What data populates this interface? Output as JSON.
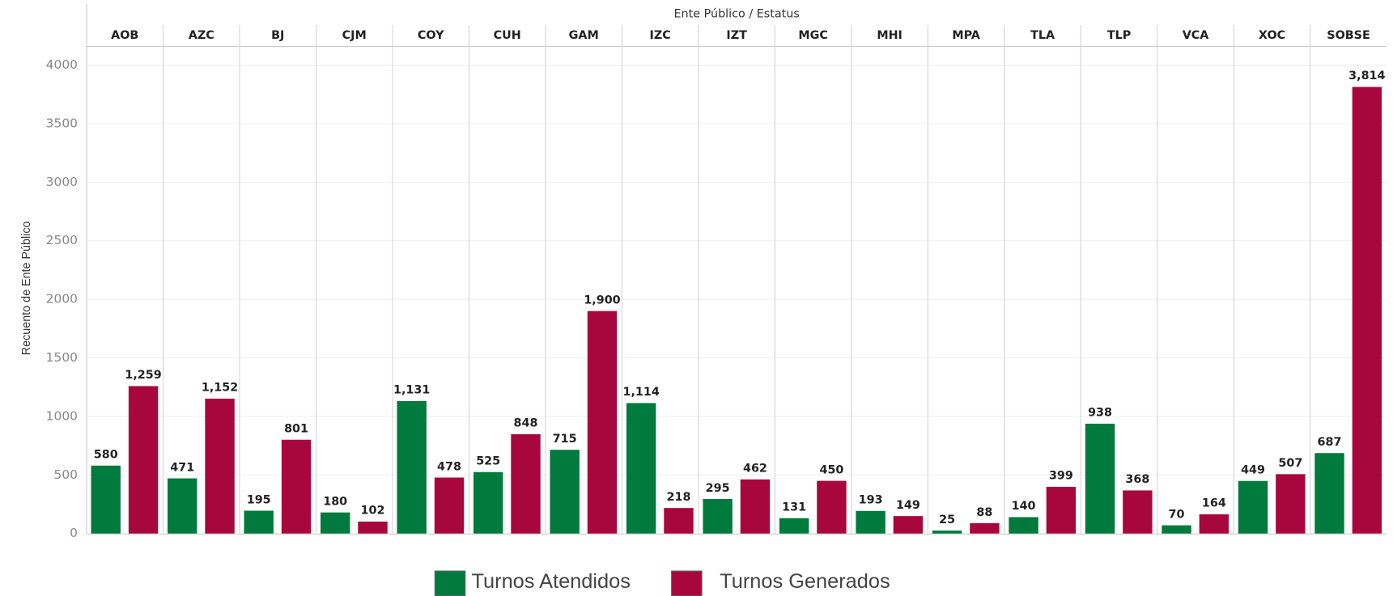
{
  "chart_data": {
    "type": "bar",
    "title": "Ente Público / Estatus",
    "y_label": "Recuento de Ente Público",
    "categories": [
      "AOB",
      "AZC",
      "BJ",
      "CJM",
      "COY",
      "CUH",
      "GAM",
      "IZC",
      "IZT",
      "MGC",
      "MHI",
      "MPA",
      "TLA",
      "TLP",
      "VCA",
      "XOC",
      "SOBSE"
    ],
    "series": [
      {
        "name": "Turnos Atendidos",
        "color": "#007a3d",
        "values": [
          580,
          471,
          195,
          180,
          1131,
          525,
          715,
          1114,
          295,
          131,
          193,
          25,
          140,
          938,
          70,
          449,
          687
        ],
        "value_labels": [
          "580",
          "471",
          "195",
          "180",
          "1,131",
          "525",
          "715",
          "1,114",
          "295",
          "131",
          "193",
          "25",
          "140",
          "938",
          "70",
          "449",
          "687"
        ]
      },
      {
        "name": "Turnos Generados",
        "color": "#a8073e",
        "values": [
          1259,
          1152,
          801,
          102,
          478,
          848,
          1900,
          218,
          462,
          450,
          149,
          88,
          399,
          368,
          164,
          507,
          3814
        ],
        "value_labels": [
          "1,259",
          "1,152",
          "801",
          "102",
          "478",
          "848",
          "1,900",
          "218",
          "462",
          "450",
          "149",
          "88",
          "399",
          "368",
          "164",
          "507",
          "3,814"
        ]
      }
    ],
    "ylim": [
      0,
      4160
    ],
    "yticks": [
      0,
      500,
      1000,
      1500,
      2000,
      2500,
      3000,
      3500,
      4000
    ],
    "grid": true,
    "legend": "bottom"
  }
}
